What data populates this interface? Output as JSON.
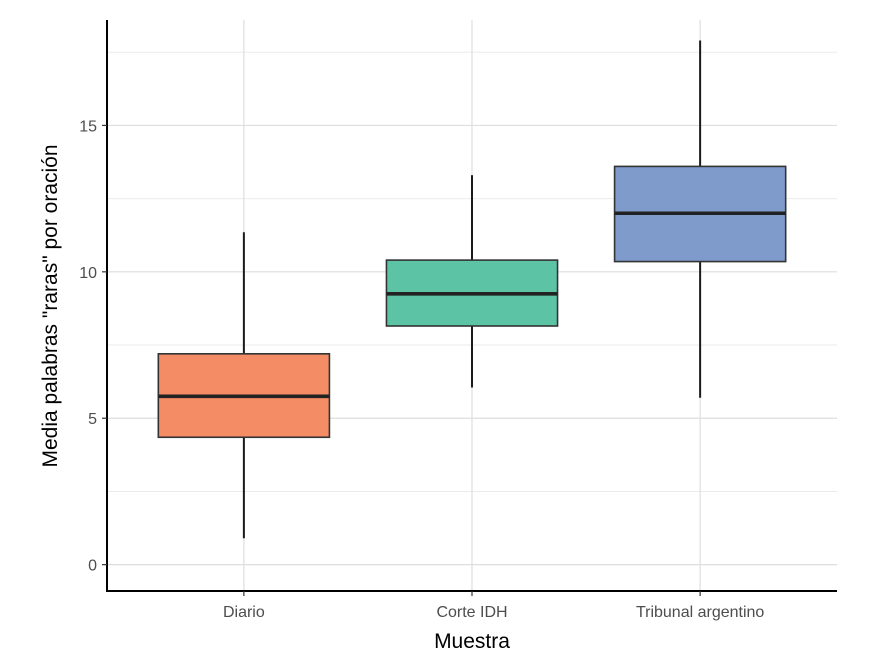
{
  "chart_data": {
    "type": "boxplot",
    "xlabel": "Muestra",
    "ylabel": "Media palabras \"raras\" por oración",
    "ylim": [
      -0.9,
      18.6
    ],
    "yticks": [
      0,
      5,
      10,
      15
    ],
    "grid": true,
    "legend": "none",
    "categories": [
      "Diario",
      "Corte IDH",
      "Tribunal argentino"
    ],
    "boxes": [
      {
        "category": "Diario",
        "min": 0.9,
        "q1": 4.35,
        "median": 5.75,
        "q3": 7.2,
        "max": 11.35,
        "color": "#F48C66"
      },
      {
        "category": "Corte IDH",
        "min": 6.05,
        "q1": 8.15,
        "median": 9.25,
        "q3": 10.4,
        "max": 13.3,
        "color": "#5DC3A5"
      },
      {
        "category": "Tribunal argentino",
        "min": 5.7,
        "q1": 10.35,
        "median": 12.0,
        "q3": 13.6,
        "max": 17.9,
        "color": "#7F9BCB"
      }
    ]
  }
}
